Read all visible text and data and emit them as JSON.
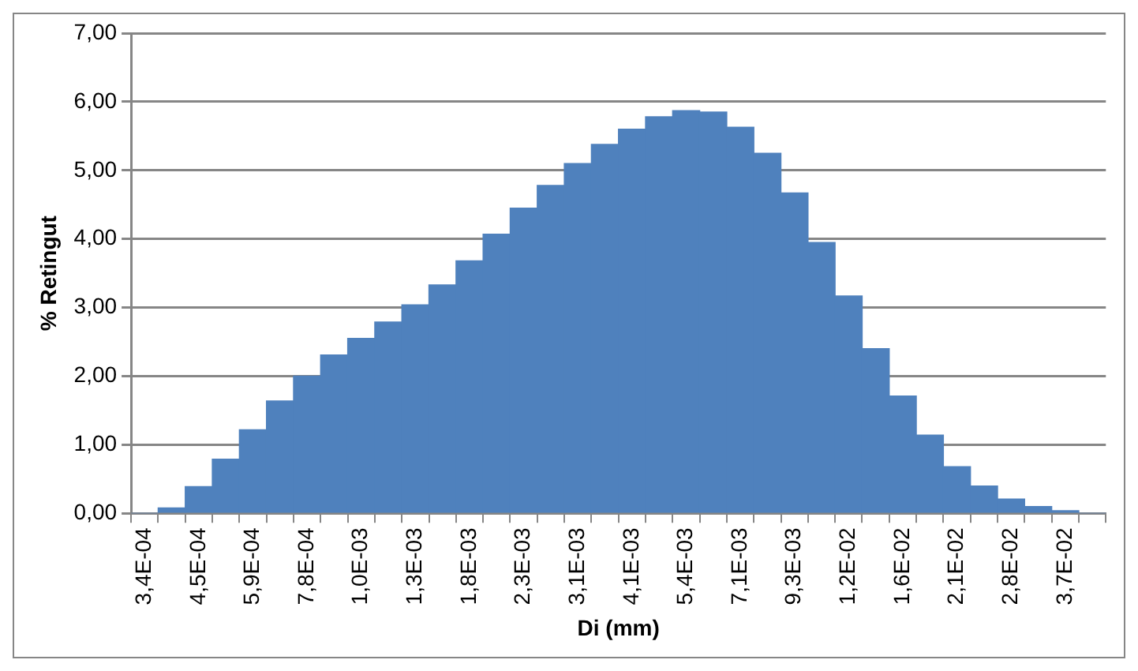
{
  "chart_data": {
    "type": "bar",
    "xlabel": "Di (mm)",
    "ylabel": "% Retingut",
    "categories": [
      "3,4E-04",
      null,
      "4,5E-04",
      null,
      "5,9E-04",
      null,
      "7,8E-04",
      null,
      "1,0E-03",
      null,
      "1,3E-03",
      null,
      "1,8E-03",
      null,
      "2,3E-03",
      null,
      "3,1E-03",
      null,
      "4,1E-03",
      null,
      "5,4E-03",
      null,
      "7,1E-03",
      null,
      "9,3E-03",
      null,
      "1,2E-02",
      null,
      "1,6E-02",
      null,
      "2,1E-02",
      null,
      "2,8E-02",
      null,
      "3,7E-02",
      null
    ],
    "values": [
      0,
      0.08,
      0.39,
      0.79,
      1.22,
      1.64,
      2.0,
      2.31,
      2.55,
      2.79,
      3.04,
      3.33,
      3.68,
      4.07,
      4.45,
      4.78,
      5.1,
      5.38,
      5.6,
      5.78,
      5.87,
      5.85,
      5.63,
      5.25,
      4.67,
      3.95,
      3.17,
      2.4,
      1.71,
      1.14,
      0.68,
      0.4,
      0.21,
      0.1,
      0.04,
      0
    ],
    "color": "#4f81bd",
    "ylim": [
      0,
      7
    ],
    "yticks": [
      {
        "value": 0,
        "label": "0,00"
      },
      {
        "value": 1,
        "label": "1,00"
      },
      {
        "value": 2,
        "label": "2,00"
      },
      {
        "value": 3,
        "label": "3,00"
      },
      {
        "value": 4,
        "label": "4,00"
      },
      {
        "value": 5,
        "label": "5,00"
      },
      {
        "value": 6,
        "label": "6,00"
      },
      {
        "value": 7,
        "label": "7,00"
      }
    ],
    "grid": "y"
  }
}
